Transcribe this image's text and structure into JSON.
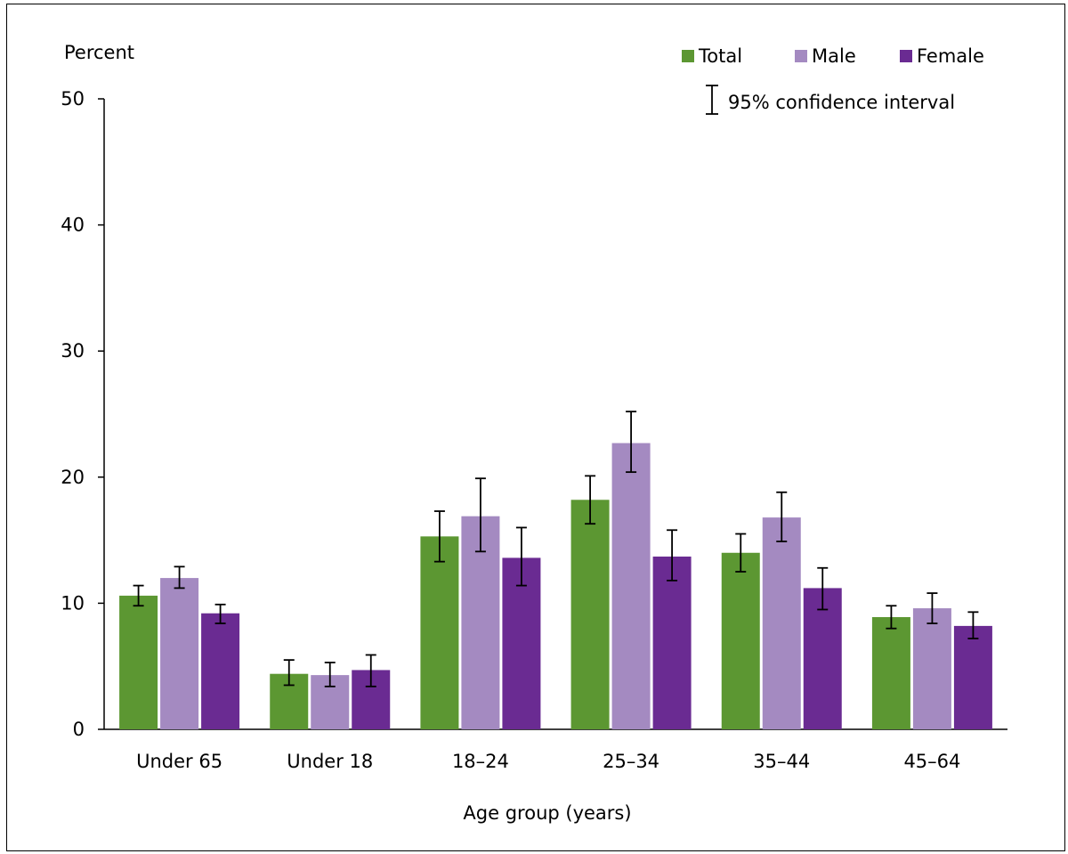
{
  "chart_data": {
    "type": "bar",
    "ylabel": "Percent",
    "xlabel": "Age group (years)",
    "ylim": [
      0,
      50
    ],
    "yticks": [
      0,
      10,
      20,
      30,
      40,
      50
    ],
    "grid": false,
    "legend_position": "top-right",
    "ci_legend_label": "95% confidence interval",
    "categories": [
      "Under 65",
      "Under 18",
      "18–24",
      "25–34",
      "35–44",
      "45–64"
    ],
    "series": [
      {
        "name": "Total",
        "color": "#5c9732",
        "values": [
          10.6,
          4.4,
          15.3,
          18.2,
          14.0,
          8.9
        ],
        "ci_low": [
          9.8,
          3.5,
          13.3,
          16.3,
          12.5,
          8.0
        ],
        "ci_high": [
          11.4,
          5.5,
          17.3,
          20.1,
          15.5,
          9.8
        ]
      },
      {
        "name": "Male",
        "color": "#a48ac1",
        "values": [
          12.0,
          4.3,
          16.9,
          22.7,
          16.8,
          9.6
        ],
        "ci_low": [
          11.2,
          3.4,
          14.1,
          20.4,
          14.9,
          8.4
        ],
        "ci_high": [
          12.9,
          5.3,
          19.9,
          25.2,
          18.8,
          10.8
        ]
      },
      {
        "name": "Female",
        "color": "#6a2b92",
        "values": [
          9.2,
          4.7,
          13.6,
          13.7,
          11.2,
          8.2
        ],
        "ci_low": [
          8.4,
          3.4,
          11.4,
          11.8,
          9.5,
          7.2
        ],
        "ci_high": [
          9.9,
          5.9,
          16.0,
          15.8,
          12.8,
          9.3
        ]
      }
    ]
  }
}
